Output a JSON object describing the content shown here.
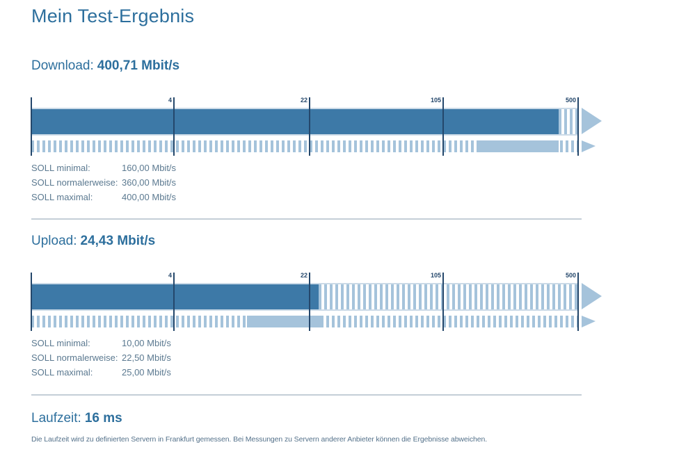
{
  "page": {
    "title": "Mein Test-Ergebnis"
  },
  "colors": {
    "heading": "#2d6f9d",
    "dark_bar": "#3d79a7",
    "light_bar": "#a5c3db",
    "navy": "#24476b",
    "muted_text": "#5b7990",
    "note_text": "#54718a",
    "divider": "#c4ced7",
    "track_border": "#cbdae7"
  },
  "scale": {
    "ticks": [
      "4",
      "22",
      "105",
      "500"
    ]
  },
  "download": {
    "label": "Download:",
    "value": "400,71 Mbit/s",
    "soll": [
      {
        "label": "SOLL minimal:",
        "value": "160,00 Mbit/s"
      },
      {
        "label": "SOLL normalerweise:",
        "value": "360,00 Mbit/s"
      },
      {
        "label": "SOLL maximal:",
        "value": "400,00 Mbit/s"
      }
    ]
  },
  "upload": {
    "label": "Upload:",
    "value": "24,43 Mbit/s",
    "soll": [
      {
        "label": "SOLL minimal:",
        "value": "10,00 Mbit/s"
      },
      {
        "label": "SOLL normalerweise:",
        "value": "22,50 Mbit/s"
      },
      {
        "label": "SOLL maximal:",
        "value": "25,00 Mbit/s"
      }
    ]
  },
  "laufzeit": {
    "label": "Laufzeit:",
    "value": "16 ms",
    "note": "Die Laufzeit wird zu definierten Servern in Frankfurt gemessen. Bei Messungen zu Servern anderer Anbieter können die Ergebnisse abweichen."
  },
  "chart_data": [
    {
      "id": "download",
      "type": "bar",
      "title": "Download",
      "unit": "Mbit/s",
      "scale": "log",
      "scale_ticks": [
        4,
        22,
        105,
        500
      ],
      "measured": 400.71,
      "soll_minimal": 160.0,
      "soll_normalerweise": 360.0,
      "soll_maximal": 400.0
    },
    {
      "id": "upload",
      "type": "bar",
      "title": "Upload",
      "unit": "Mbit/s",
      "scale": "log",
      "scale_ticks": [
        4,
        22,
        105,
        500
      ],
      "measured": 24.43,
      "soll_minimal": 10.0,
      "soll_normalerweise": 22.5,
      "soll_maximal": 25.0
    }
  ]
}
